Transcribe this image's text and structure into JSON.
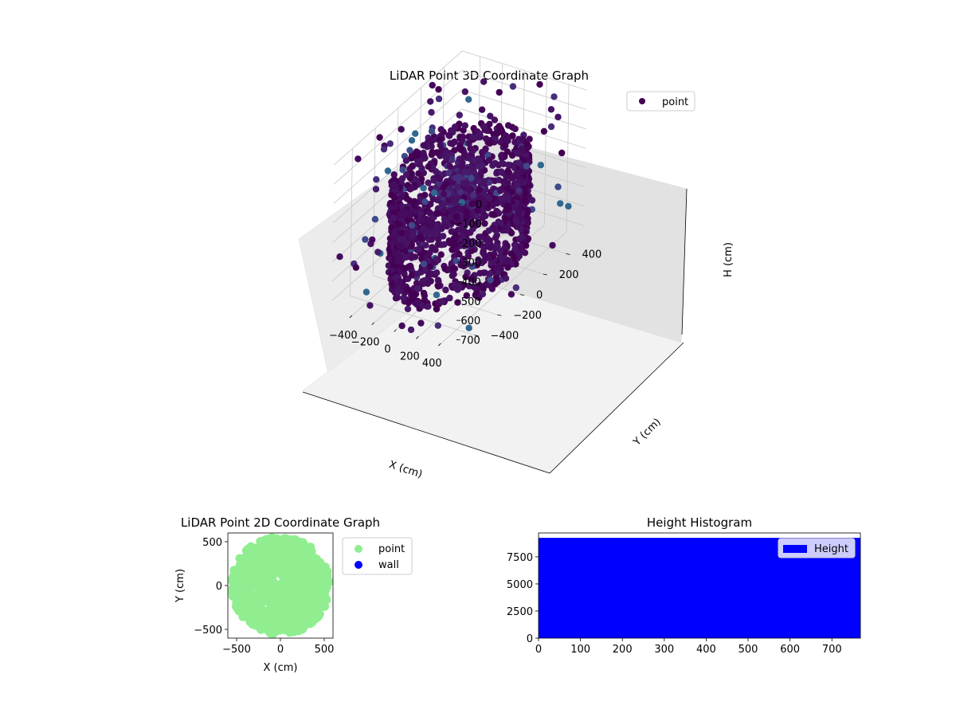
{
  "chart_data": [
    {
      "type": "scatter",
      "projection": "3d",
      "title": "LiDAR Point 3D Coordinate Graph",
      "xlabel": "X (cm)",
      "ylabel": "Y (cm)",
      "zlabel": "H (cm)",
      "xlim": [
        -560,
        560
      ],
      "ylim": [
        -560,
        560
      ],
      "zlim": [
        0,
        760
      ],
      "z_inverted": true,
      "xticks": [
        "−400",
        "−200",
        "0",
        "200",
        "400"
      ],
      "yticks": [
        "−400",
        "−200",
        "0",
        "200",
        "400"
      ],
      "zticks": [
        "0",
        "100",
        "200",
        "300",
        "400",
        "500",
        "600",
        "700"
      ],
      "grid": true,
      "legend": {
        "position": "top-right",
        "entries": [
          {
            "label": "point",
            "color": "#440154"
          }
        ]
      },
      "colormap": "viridis",
      "series": [
        {
          "name": "point",
          "shape": "cylindrical wall of points (radius ~420 cm) spanning heights ~200–700 cm, a central cluster near the origin, plus scattered outlier points",
          "ring_radius": 420,
          "ring_height": [
            200,
            700
          ],
          "sample_points": [
            [
              -420,
              0,
              650
            ],
            [
              0,
              420,
              600
            ],
            [
              420,
              0,
              550
            ],
            [
              0,
              -420,
              500
            ],
            [
              -100,
              50,
              400
            ],
            [
              60,
              -80,
              350
            ],
            [
              30,
              20,
              250
            ],
            [
              -500,
              300,
              100
            ],
            [
              480,
              -350,
              80
            ],
            [
              -300,
              -480,
              720
            ],
            [
              350,
              480,
              30
            ],
            [
              200,
              -520,
              700
            ],
            [
              -520,
              -200,
              40
            ]
          ]
        }
      ]
    },
    {
      "type": "scatter",
      "title": "LiDAR Point 2D Coordinate Graph",
      "xlabel": "X (cm)",
      "ylabel": "Y (cm)",
      "xlim": [
        -600,
        600
      ],
      "ylim": [
        -600,
        600
      ],
      "xticks": [
        -500,
        0,
        500
      ],
      "yticks": [
        -500,
        0,
        500
      ],
      "legend": {
        "position": "outside-right",
        "entries": [
          {
            "label": "point",
            "color": "#90ee90"
          },
          {
            "label": "wall",
            "color": "#0000ff"
          }
        ]
      },
      "series": [
        {
          "name": "point",
          "color": "#90ee90",
          "shape": "dense filled disk of points covering roughly −560…560 cm in X and Y"
        },
        {
          "name": "wall",
          "color": "#0000ff",
          "values": []
        }
      ]
    },
    {
      "type": "bar",
      "title": "Height Histogram",
      "xlim": [
        0,
        768
      ],
      "ylim": [
        0,
        9700
      ],
      "xticks": [
        0,
        100,
        200,
        300,
        400,
        500,
        600,
        700
      ],
      "yticks": [
        "0",
        "2500",
        "5000",
        "7500"
      ],
      "legend": {
        "position": "top-right",
        "entries": [
          {
            "label": "Height",
            "color": "#0000ff"
          }
        ]
      },
      "series": [
        {
          "name": "Height",
          "color": "#0000ff",
          "bin_range": [
            0,
            768
          ],
          "value": 9250
        }
      ]
    }
  ]
}
